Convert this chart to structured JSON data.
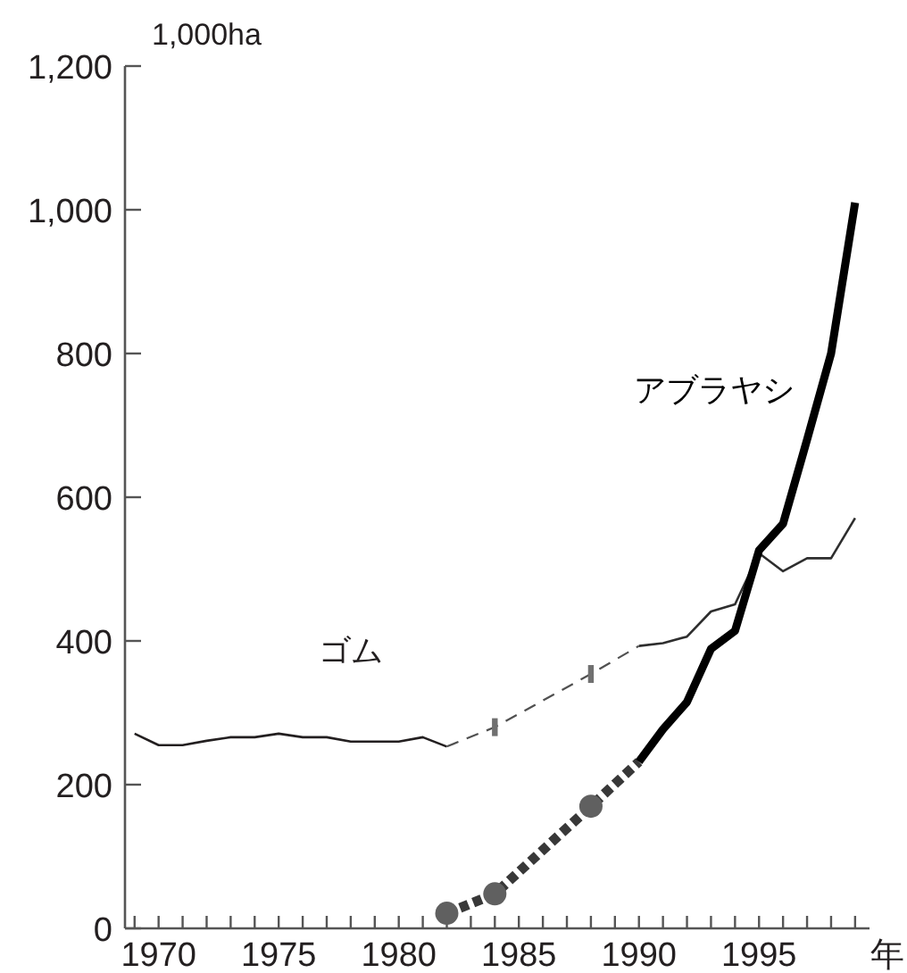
{
  "chart_data": {
    "type": "line",
    "ylabel": "1,000ha",
    "xlabel": "年",
    "xlim": [
      1968.6,
      1999.6
    ],
    "ylim": [
      0,
      1200
    ],
    "xticks": [
      {
        "value": 1969,
        "label": null
      },
      1970,
      {
        "value": 1971,
        "label": null
      },
      {
        "value": 1972,
        "label": null
      },
      {
        "value": 1973,
        "label": null
      },
      {
        "value": 1974,
        "label": null
      },
      1975,
      {
        "value": 1976,
        "label": null
      },
      {
        "value": 1977,
        "label": null
      },
      {
        "value": 1978,
        "label": null
      },
      {
        "value": 1979,
        "label": null
      },
      1980,
      {
        "value": 1981,
        "label": null
      },
      {
        "value": 1982,
        "label": null
      },
      {
        "value": 1983,
        "label": null
      },
      {
        "value": 1984,
        "label": null
      },
      1985,
      {
        "value": 1986,
        "label": null
      },
      {
        "value": 1987,
        "label": null
      },
      {
        "value": 1988,
        "label": null
      },
      {
        "value": 1989,
        "label": null
      },
      1990,
      {
        "value": 1991,
        "label": null
      },
      {
        "value": 1992,
        "label": null
      },
      {
        "value": 1993,
        "label": null
      },
      {
        "value": 1994,
        "label": null
      },
      1995,
      {
        "value": 1996,
        "label": null
      },
      {
        "value": 1997,
        "label": null
      },
      {
        "value": 1998,
        "label": null
      },
      {
        "value": 1999,
        "label": null
      }
    ],
    "yticks": [
      0,
      200,
      400,
      600,
      800,
      {
        "value": 1000,
        "label": "1,000"
      },
      {
        "value": 1200,
        "label": "1,200"
      }
    ],
    "grid": false,
    "series": [
      {
        "name": "ゴム",
        "color": "#231f20",
        "line_style": "solid",
        "x": [
          1969,
          1970,
          1971,
          1972,
          1973,
          1974,
          1975,
          1976,
          1977,
          1978,
          1979,
          1980,
          1981,
          1982
        ],
        "values": [
          271,
          255,
          255,
          261,
          266,
          266,
          271,
          266,
          266,
          260,
          260,
          260,
          266,
          253
        ]
      },
      {
        "color": "#2e2e2e",
        "line_style": "solid",
        "x": [
          1990,
          1991,
          1992,
          1993,
          1994,
          1995,
          1996,
          1997,
          1998,
          1999
        ],
        "values": [
          393,
          397,
          406,
          441,
          451,
          522,
          497,
          515,
          515,
          571
        ]
      },
      {
        "color": "#505050",
        "line_style": "dashed",
        "x": [
          1982,
          1984,
          1988,
          1990
        ],
        "values": [
          253,
          280,
          354,
          393
        ]
      },
      {
        "type": "scatter",
        "color": "#707070",
        "marker": "square",
        "x": [
          1984,
          1988
        ],
        "values": [
          280,
          354
        ]
      },
      {
        "color": "#383838",
        "line_style": "dotted",
        "x": [
          1982,
          1984,
          1988,
          1990
        ],
        "values": [
          21,
          48,
          170,
          232
        ]
      },
      {
        "type": "scatter",
        "color": "#606060",
        "marker": "circle",
        "x": [
          1982,
          1984,
          1988
        ],
        "values": [
          21,
          48,
          170
        ]
      },
      {
        "name": "アブラヤシ",
        "color": "#000000",
        "line_style": "solid",
        "x": [
          1990,
          1991,
          1992,
          1993,
          1994,
          1995,
          1996,
          1997,
          1998,
          1999
        ],
        "values": [
          232,
          277,
          315,
          389,
          414,
          526,
          563,
          680,
          800,
          1010
        ]
      }
    ]
  }
}
